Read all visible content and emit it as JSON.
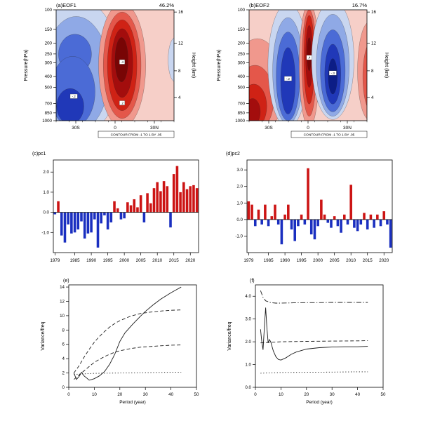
{
  "colors": {
    "bar_positive": "#cc1414",
    "bar_negative": "#1a2fc0",
    "background_pink": "#f6cfc8",
    "reds": [
      "#f6cfc8",
      "#f0988d",
      "#e4574a",
      "#cf2215",
      "#a30d0d",
      "#780505"
    ],
    "blues": [
      "#c9d6f0",
      "#8fa9e6",
      "#4b6bd6",
      "#2038b8",
      "#0c1d86"
    ],
    "line": "#1a1a1a",
    "axis": "#000000"
  },
  "chart_data": [
    {
      "id": "a",
      "type": "heatmap",
      "title": "(a)EOF1",
      "variance_label": "46.2%",
      "ylabel": "Pressure(hPa)",
      "y2label": "Height (km)",
      "y_ticks": [
        100,
        150,
        200,
        250,
        300,
        400,
        500,
        700,
        850,
        1000
      ],
      "y2_ticks": [
        16,
        12,
        8,
        4
      ],
      "x_ticks": [
        "30S",
        "0",
        "30N"
      ],
      "contour_note": "CONTOUR FROM -1 TO 1 BY .05",
      "contour_labels": [
        {
          "t": "-.2",
          "x": 0.15,
          "y": 0.78
        },
        {
          "t": ".4",
          "x": 0.56,
          "y": 0.47
        },
        {
          "t": ".2",
          "x": 0.56,
          "y": 0.84
        }
      ],
      "features": [
        {
          "sign": "positive",
          "center": "near 5N",
          "extent": "100-1000 hPa, strongest 300-500 hPa"
        },
        {
          "sign": "negative",
          "center": "20S-35S",
          "extent": "strongest below 500 hPa near 30S"
        }
      ]
    },
    {
      "id": "b",
      "type": "heatmap",
      "title": "(b)EOF2",
      "variance_label": "16.7%",
      "ylabel": "Pressure(hPa)",
      "y2label": "Height (km)",
      "y_ticks": [
        100,
        150,
        200,
        250,
        300,
        400,
        500,
        700,
        850,
        1000
      ],
      "y2_ticks": [
        16,
        12,
        8,
        4
      ],
      "x_ticks": [
        "30S",
        "0",
        "30N"
      ],
      "contour_note": "CONTOUR FROM -1 TO 1 BY .05",
      "contour_labels": [
        {
          "t": "-.2",
          "x": 0.33,
          "y": 0.62
        },
        {
          "t": ".4",
          "x": 0.51,
          "y": 0.43
        },
        {
          "t": "-.3",
          "x": 0.71,
          "y": 0.57
        }
      ],
      "features": [
        {
          "sign": "positive",
          "center": "30S near surface",
          "extent": "below 400 hPa"
        },
        {
          "sign": "negative",
          "center": "10S-15S",
          "extent": "full depth column"
        },
        {
          "sign": "positive",
          "center": "near 0-5N",
          "extent": "narrow full-depth column, core 200-400 hPa"
        },
        {
          "sign": "negative",
          "center": "10N-25N",
          "extent": "full depth column, core 400-700 hPa"
        },
        {
          "sign": "positive",
          "center": "40N edge",
          "extent": "mid troposphere"
        }
      ]
    },
    {
      "id": "c",
      "type": "bar",
      "title": "(c)pc1",
      "years": [
        1979,
        1980,
        1981,
        1982,
        1983,
        1984,
        1985,
        1986,
        1987,
        1988,
        1989,
        1990,
        1991,
        1992,
        1993,
        1994,
        1995,
        1996,
        1997,
        1998,
        1999,
        2000,
        2001,
        2002,
        2003,
        2004,
        2005,
        2006,
        2007,
        2008,
        2009,
        2010,
        2011,
        2012,
        2013,
        2014,
        2015,
        2016,
        2017,
        2018,
        2019,
        2020,
        2021,
        2022
      ],
      "values": [
        -0.1,
        0.55,
        -1.15,
        -1.5,
        -0.6,
        -1.05,
        -1.0,
        -0.85,
        -0.45,
        -1.3,
        -1.05,
        -1.0,
        -0.35,
        -1.75,
        -0.55,
        -0.15,
        -0.85,
        -0.5,
        0.55,
        0.2,
        -0.35,
        -0.3,
        0.5,
        0.35,
        0.65,
        0.25,
        0.85,
        -0.5,
        0.95,
        0.45,
        1.2,
        1.5,
        1.05,
        1.55,
        1.3,
        -0.75,
        1.9,
        2.3,
        1.0,
        1.5,
        1.15,
        1.3,
        1.35,
        1.2
      ],
      "y_ticks": [
        -1.0,
        0.0,
        1.0,
        2.0
      ],
      "ylim": [
        -2.0,
        2.6
      ],
      "x_ticks": [
        1979,
        1985,
        1990,
        1995,
        2000,
        2005,
        2010,
        2015,
        2020
      ]
    },
    {
      "id": "d",
      "type": "bar",
      "title": "(d)pc2",
      "years": [
        1979,
        1980,
        1981,
        1982,
        1983,
        1984,
        1985,
        1986,
        1987,
        1988,
        1989,
        1990,
        1991,
        1992,
        1993,
        1994,
        1995,
        1996,
        1997,
        1998,
        1999,
        2000,
        2001,
        2002,
        2003,
        2004,
        2005,
        2006,
        2007,
        2008,
        2009,
        2010,
        2011,
        2012,
        2013,
        2014,
        2015,
        2016,
        2017,
        2018,
        2019,
        2020,
        2021,
        2022
      ],
      "values": [
        1.1,
        0.9,
        -0.4,
        0.6,
        -0.3,
        0.9,
        -0.4,
        0.2,
        0.9,
        -0.3,
        -1.5,
        0.3,
        0.9,
        -0.6,
        -1.3,
        -0.4,
        0.3,
        -0.3,
        3.1,
        -0.9,
        -1.2,
        -0.4,
        1.2,
        0.3,
        -0.2,
        -0.5,
        0.2,
        -0.4,
        -0.8,
        0.3,
        -0.3,
        2.1,
        -0.5,
        -0.7,
        -0.3,
        0.4,
        -0.6,
        0.3,
        -0.5,
        0.3,
        -0.4,
        0.5,
        -0.3,
        -1.7
      ],
      "y_ticks": [
        -1.0,
        0.0,
        1.0,
        2.0,
        3.0
      ],
      "ylim": [
        -2.0,
        3.6
      ],
      "x_ticks": [
        1979,
        1985,
        1990,
        1995,
        2000,
        2005,
        2010,
        2015,
        2020
      ]
    },
    {
      "id": "e",
      "type": "line",
      "title": "(e)",
      "xlabel": "Period (year)",
      "ylabel": "Variance/freq",
      "xlim": [
        0,
        50
      ],
      "ylim": [
        0,
        14.3
      ],
      "x_ticks": [
        0,
        10,
        20,
        30,
        40,
        50
      ],
      "y_ticks": [
        0,
        2,
        4,
        6,
        8,
        10,
        12,
        14
      ],
      "y_tick_decimals": 0,
      "series": [
        {
          "name": "power-spectrum",
          "style": "solid",
          "x": [
            2,
            3,
            4,
            5,
            6,
            7,
            8,
            9,
            10,
            12,
            14,
            16,
            18,
            20,
            22,
            25,
            28,
            30,
            33,
            36,
            40,
            44
          ],
          "y": [
            2.0,
            1.1,
            1.5,
            2.1,
            1.6,
            1.3,
            1.0,
            1.1,
            1.2,
            1.6,
            2.2,
            3.2,
            4.6,
            6.4,
            7.6,
            8.8,
            9.9,
            10.6,
            11.5,
            12.3,
            13.2,
            14.0
          ]
        },
        {
          "name": "upper-confidence",
          "style": "dashed",
          "x": [
            2,
            4,
            6,
            8,
            10,
            12,
            14,
            16,
            18,
            20,
            24,
            28,
            32,
            36,
            40,
            44
          ],
          "y": [
            2.0,
            3.0,
            4.2,
            5.3,
            6.3,
            7.1,
            7.8,
            8.4,
            8.9,
            9.3,
            9.9,
            10.3,
            10.5,
            10.65,
            10.75,
            10.8
          ]
        },
        {
          "name": "red-noise",
          "style": "dashed",
          "x": [
            2,
            4,
            6,
            8,
            10,
            12,
            14,
            16,
            18,
            20,
            24,
            28,
            32,
            36,
            40,
            44
          ],
          "y": [
            1.1,
            1.7,
            2.3,
            2.9,
            3.5,
            3.9,
            4.3,
            4.6,
            4.9,
            5.1,
            5.4,
            5.6,
            5.7,
            5.8,
            5.88,
            5.92
          ]
        },
        {
          "name": "lower-confidence",
          "style": "dotted",
          "x": [
            2,
            10,
            20,
            30,
            40,
            44
          ],
          "y": [
            1.8,
            1.95,
            2.0,
            2.05,
            2.1,
            2.1
          ]
        }
      ]
    },
    {
      "id": "f",
      "type": "line",
      "title": "(f)",
      "xlabel": "Period (year)",
      "ylabel": "Variance/freq",
      "xlim": [
        0,
        50
      ],
      "ylim": [
        0,
        4.5
      ],
      "x_ticks": [
        0,
        10,
        20,
        30,
        40,
        50
      ],
      "y_ticks": [
        0.0,
        1.0,
        2.0,
        3.0,
        4.0
      ],
      "y_tick_decimals": 1,
      "series": [
        {
          "name": "upper-confidence",
          "style": "dashdot",
          "x": [
            2,
            3,
            4,
            6,
            8,
            10,
            15,
            20,
            25,
            30,
            35,
            40,
            44
          ],
          "y": [
            4.25,
            3.95,
            3.8,
            3.72,
            3.7,
            3.7,
            3.71,
            3.72,
            3.72,
            3.73,
            3.73,
            3.73,
            3.73
          ]
        },
        {
          "name": "power-spectrum",
          "style": "solid",
          "x": [
            2,
            2.5,
            3,
            3.5,
            4,
            4.5,
            5,
            5.5,
            6,
            7,
            8,
            9,
            10,
            12,
            14,
            16,
            20,
            25,
            30,
            35,
            40,
            44
          ],
          "y": [
            2.55,
            2.0,
            1.65,
            2.6,
            3.5,
            2.6,
            1.95,
            2.1,
            2.0,
            1.6,
            1.35,
            1.22,
            1.2,
            1.3,
            1.45,
            1.55,
            1.68,
            1.74,
            1.77,
            1.78,
            1.78,
            1.8
          ]
        },
        {
          "name": "red-noise",
          "style": "dashed",
          "x": [
            2,
            10,
            20,
            30,
            40,
            44
          ],
          "y": [
            1.95,
            2.0,
            2.02,
            2.03,
            2.04,
            2.05
          ]
        },
        {
          "name": "lower-confidence",
          "style": "dotted",
          "x": [
            2,
            10,
            20,
            30,
            40,
            44
          ],
          "y": [
            0.62,
            0.65,
            0.66,
            0.67,
            0.68,
            0.68
          ]
        }
      ]
    }
  ]
}
